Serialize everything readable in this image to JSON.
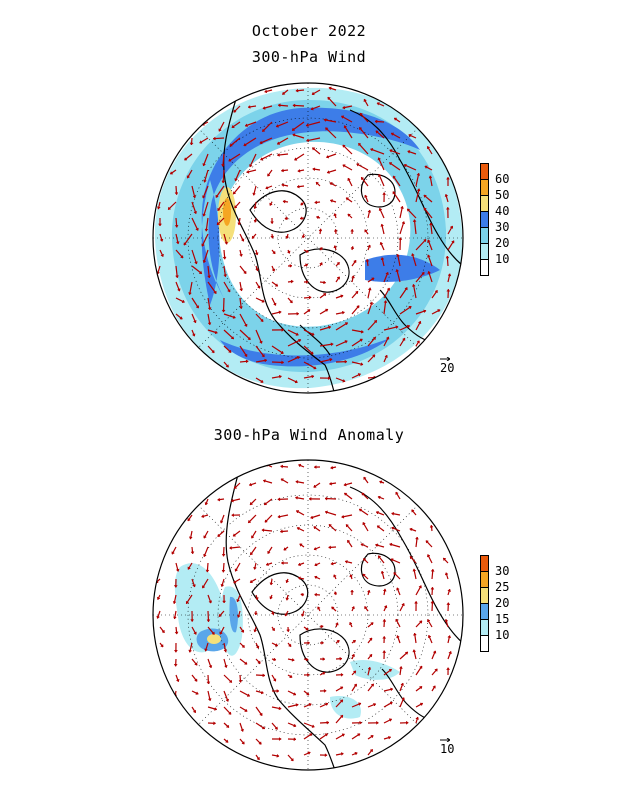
{
  "figure": {
    "main_title": "October 2022",
    "top_panel": {
      "subtitle": "300-hPa Wind",
      "reference_vector": "20",
      "colorbar": {
        "levels": [
          "10",
          "20",
          "30",
          "40",
          "50",
          "60"
        ],
        "colors": [
          "#ffffff",
          "#b3ecf4",
          "#7cd3ea",
          "#3d7de8",
          "#f5e07a",
          "#f5a623",
          "#ea5b0c"
        ]
      }
    },
    "bottom_panel": {
      "subtitle": "300-hPa Wind Anomaly",
      "reference_vector": "10",
      "colorbar": {
        "levels": [
          "10",
          "15",
          "20",
          "25",
          "30"
        ],
        "colors": [
          "#ffffff",
          "#b3ecf4",
          "#5aa6ea",
          "#f5e07a",
          "#f5a623",
          "#ea5b0c"
        ]
      }
    },
    "colors": {
      "vectors": "#b20000",
      "coastlines": "#000000",
      "grid": "#000000"
    }
  }
}
